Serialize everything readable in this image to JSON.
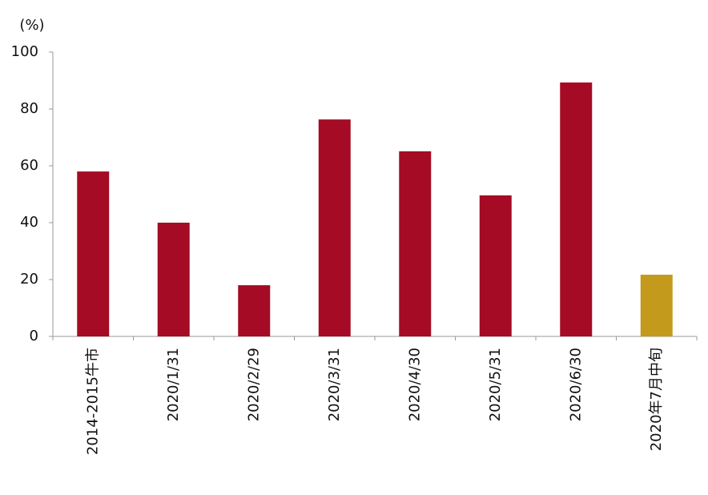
{
  "chart_data": {
    "type": "bar",
    "y_label": "(%)",
    "categories": [
      "2014-2015牛市",
      "2020/1/31",
      "2020/2/29",
      "2020/3/31",
      "2020/4/30",
      "2020/5/31",
      "2020/6/30",
      "2020年7月中旬"
    ],
    "values": [
      58,
      40,
      18,
      76.3,
      65.1,
      49.6,
      89.3,
      21.7
    ],
    "colors": [
      "#a50b24",
      "#a50b24",
      "#a50b24",
      "#a50b24",
      "#a50b24",
      "#a50b24",
      "#a50b24",
      "#c49a1c"
    ],
    "ylim": [
      0,
      100
    ],
    "yticks": [
      0,
      20,
      40,
      60,
      80,
      100
    ],
    "grid": false
  }
}
